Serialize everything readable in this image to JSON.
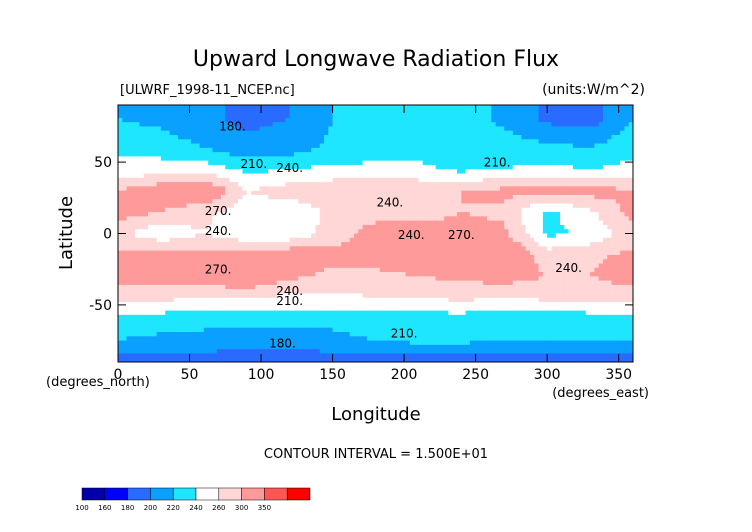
{
  "chart_data": {
    "type": "heatmap",
    "title": "Upward Longwave Radiation Flux",
    "file_label": "[ULWRF_1998-11_NCEP.nc]",
    "units_label": "(units:W/m^2)",
    "xlabel": "Longitude",
    "ylabel": "Latitude",
    "x_unit_label": "(degrees_east)",
    "y_unit_label": "(degrees_north)",
    "xlim": [
      0,
      360
    ],
    "ylim": [
      -90,
      90
    ],
    "xticks": [
      "0",
      "50",
      "100",
      "150",
      "200",
      "250",
      "300",
      "350"
    ],
    "xtick_values": [
      0,
      50,
      100,
      150,
      200,
      250,
      300,
      350
    ],
    "yticks": [
      "50",
      "0",
      "-50"
    ],
    "ytick_values": [
      50,
      0,
      -50
    ],
    "contour_interval_text": "CONTOUR INTERVAL = 1.500E+01",
    "contour_labels": [
      {
        "text": "180.",
        "lon": 80,
        "lat": 72
      },
      {
        "text": "210.",
        "lon": 95,
        "lat": 46
      },
      {
        "text": "240.",
        "lon": 120,
        "lat": 43
      },
      {
        "text": "210.",
        "lon": 265,
        "lat": 47
      },
      {
        "text": "240.",
        "lon": 190,
        "lat": 19
      },
      {
        "text": "270.",
        "lon": 70,
        "lat": 13
      },
      {
        "text": "240.",
        "lon": 70,
        "lat": -1
      },
      {
        "text": "240.",
        "lon": 205,
        "lat": -4
      },
      {
        "text": "270.",
        "lon": 240,
        "lat": -4
      },
      {
        "text": "270.",
        "lon": 70,
        "lat": -28
      },
      {
        "text": "240.",
        "lon": 120,
        "lat": -43
      },
      {
        "text": "210.",
        "lon": 120,
        "lat": -50
      },
      {
        "text": "210.",
        "lon": 200,
        "lat": -73
      },
      {
        "text": "180.",
        "lon": 115,
        "lat": -80
      },
      {
        "text": "240.",
        "lon": 315,
        "lat": -27
      }
    ],
    "colorbar": {
      "levels": [
        "100",
        "160",
        "180",
        "200",
        "220",
        "240",
        "260",
        "300",
        "350"
      ],
      "colors": [
        "#0000aa",
        "#0000ff",
        "#2a6bff",
        "#0aa0ff",
        "#1ee6ff",
        "#ffffff",
        "#ffd7d7",
        "#ff9a9a",
        "#ff5555",
        "#ff0000"
      ]
    },
    "field_samples": [
      {
        "lat": 80,
        "values_by_lon_step_30": [
          200,
          195,
          185,
          175,
          180,
          200,
          205,
          205,
          210,
          195,
          175,
          170,
          200
        ]
      },
      {
        "lat": 60,
        "values_by_lon_step_30": [
          215,
          210,
          200,
          185,
          190,
          205,
          210,
          210,
          215,
          210,
          205,
          200,
          215
        ]
      },
      {
        "lat": 45,
        "values_by_lon_step_30": [
          225,
          230,
          230,
          215,
          220,
          225,
          225,
          225,
          215,
          220,
          225,
          220,
          225
        ]
      },
      {
        "lat": 30,
        "values_by_lon_step_30": [
          260,
          275,
          285,
          240,
          250,
          255,
          255,
          255,
          260,
          265,
          265,
          270,
          260
        ]
      },
      {
        "lat": 15,
        "values_by_lon_step_30": [
          270,
          260,
          245,
          230,
          225,
          245,
          250,
          250,
          260,
          255,
          215,
          235,
          270
        ]
      },
      {
        "lat": 0,
        "values_by_lon_step_30": [
          245,
          225,
          240,
          225,
          225,
          250,
          270,
          270,
          270,
          265,
          215,
          225,
          250
        ]
      },
      {
        "lat": -15,
        "values_by_lon_step_30": [
          265,
          270,
          265,
          270,
          275,
          265,
          270,
          275,
          280,
          285,
          250,
          255,
          265
        ]
      },
      {
        "lat": -30,
        "values_by_lon_step_30": [
          270,
          270,
          275,
          285,
          265,
          255,
          255,
          260,
          265,
          270,
          260,
          260,
          270
        ]
      },
      {
        "lat": -45,
        "values_by_lon_step_30": [
          250,
          245,
          240,
          240,
          235,
          235,
          240,
          240,
          245,
          240,
          245,
          245,
          250
        ]
      },
      {
        "lat": -60,
        "values_by_lon_step_30": [
          210,
          210,
          205,
          205,
          205,
          205,
          210,
          210,
          210,
          205,
          205,
          210,
          210
        ]
      },
      {
        "lat": -75,
        "values_by_lon_step_30": [
          200,
          195,
          195,
          190,
          190,
          195,
          200,
          205,
          205,
          200,
          200,
          200,
          200
        ]
      },
      {
        "lat": -88,
        "values_by_lon_step_30": [
          170,
          170,
          170,
          170,
          170,
          170,
          170,
          170,
          170,
          170,
          170,
          170,
          170
        ]
      }
    ]
  }
}
